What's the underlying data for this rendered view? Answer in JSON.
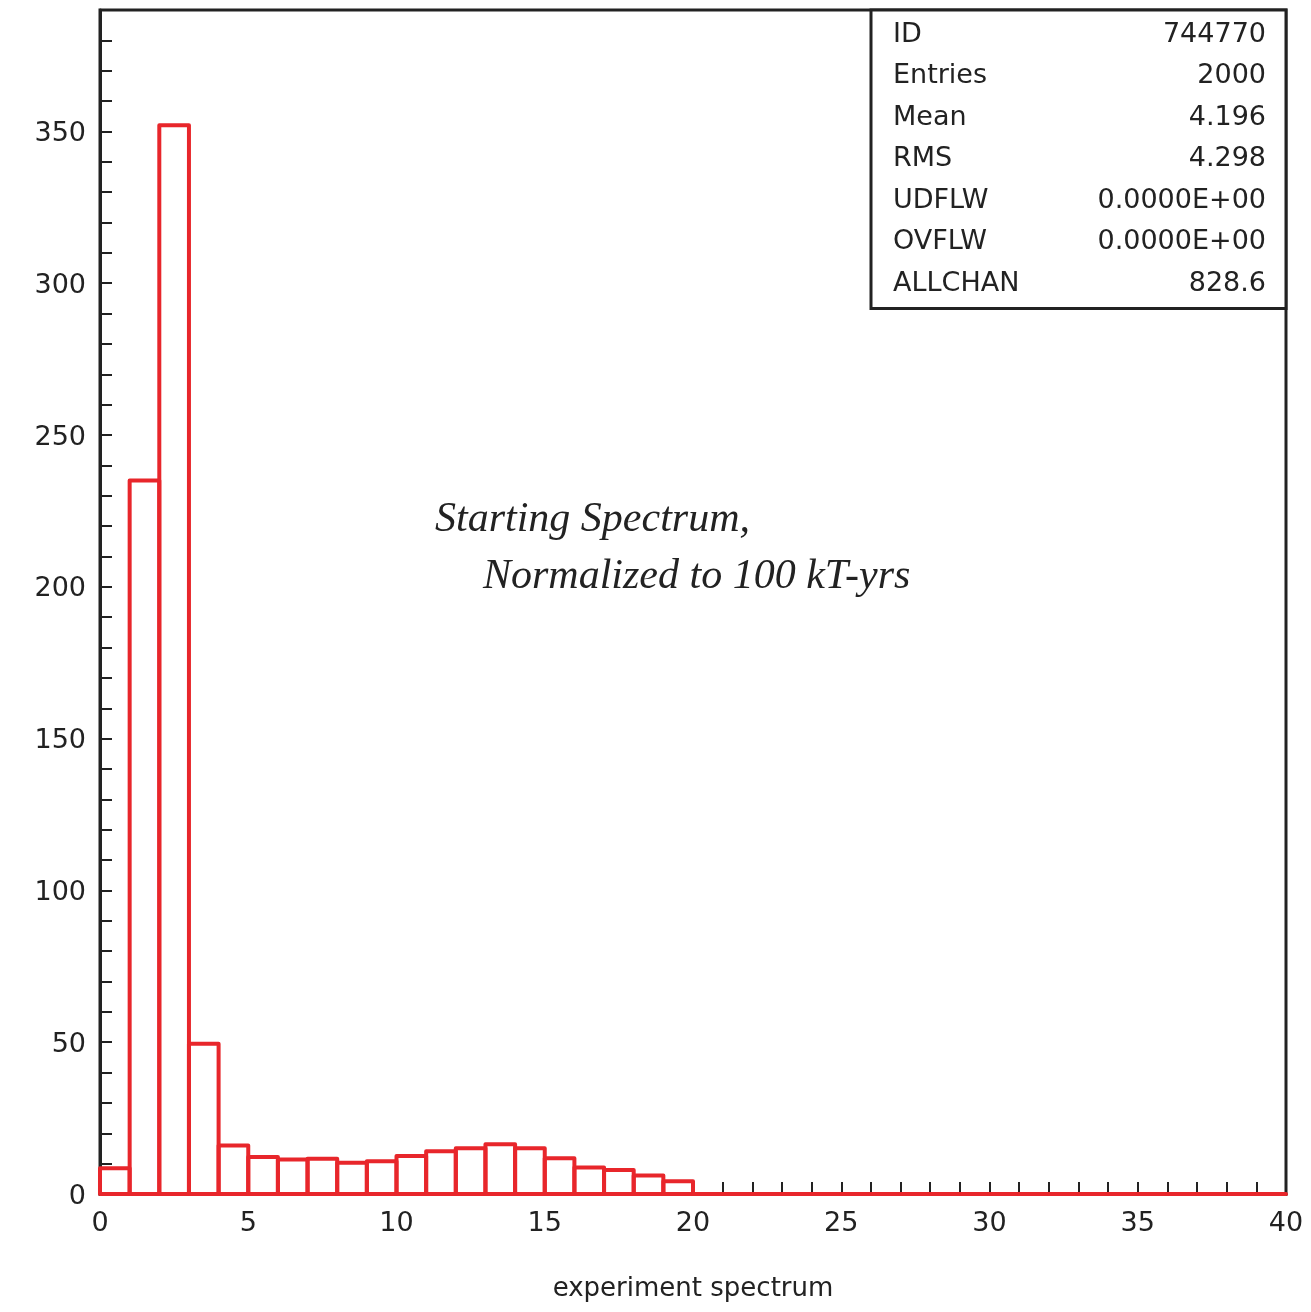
{
  "chart_data": {
    "type": "histogram",
    "xlabel": "experiment spectrum",
    "annotations": [
      "Starting Spectrum,",
      "Normalized to 100 kT-yrs",
      "ID 744770",
      "Entries 2000",
      "Mean 4.196",
      "RMS 4.298",
      "UDFLW 0.0000E+00",
      "OVFLW 0.0000E+00",
      "ALLCHAN 828.6"
    ],
    "bins": [
      0,
      1,
      2,
      3,
      4,
      5,
      6,
      7,
      8,
      9,
      10,
      11,
      12,
      13,
      14,
      15,
      16,
      17,
      18,
      19,
      20,
      21,
      22,
      23,
      24,
      25,
      26,
      27,
      28,
      29,
      30,
      31,
      32,
      33,
      34,
      35,
      36,
      37,
      38,
      39,
      40
    ],
    "values": [
      8.5,
      235,
      352,
      49.5,
      16,
      12.2,
      11.4,
      11.6,
      10.3,
      10.8,
      12.5,
      14.1,
      15.1,
      16.4,
      15.1,
      11.8,
      8.7,
      7.9,
      6.1,
      4.2,
      0,
      0,
      0,
      0,
      0,
      0,
      0,
      0,
      0,
      0,
      0,
      0,
      0,
      0,
      0,
      0,
      0,
      0,
      0,
      0
    ],
    "color": "#e8262b",
    "xlim": [
      0,
      40
    ],
    "xticks": [
      0,
      {
        "value": 1,
        "label": null
      },
      {
        "value": 2,
        "label": null
      },
      {
        "value": 3,
        "label": null
      },
      {
        "value": 4,
        "label": null
      },
      5,
      {
        "value": 6,
        "label": null
      },
      {
        "value": 7,
        "label": null
      },
      {
        "value": 8,
        "label": null
      },
      {
        "value": 9,
        "label": null
      },
      10,
      {
        "value": 11,
        "label": null
      },
      {
        "value": 12,
        "label": null
      },
      {
        "value": 13,
        "label": null
      },
      {
        "value": 14,
        "label": null
      },
      15,
      {
        "value": 16,
        "label": null
      },
      {
        "value": 17,
        "label": null
      },
      {
        "value": 18,
        "label": null
      },
      {
        "value": 19,
        "label": null
      },
      20,
      {
        "value": 21,
        "label": null
      },
      {
        "value": 22,
        "label": null
      },
      {
        "value": 23,
        "label": null
      },
      {
        "value": 24,
        "label": null
      },
      25,
      {
        "value": 26,
        "label": null
      },
      {
        "value": 27,
        "label": null
      },
      {
        "value": 28,
        "label": null
      },
      {
        "value": 29,
        "label": null
      },
      30,
      {
        "value": 31,
        "label": null
      },
      {
        "value": 32,
        "label": null
      },
      {
        "value": 33,
        "label": null
      },
      {
        "value": 34,
        "label": null
      },
      35,
      {
        "value": 36,
        "label": null
      },
      {
        "value": 37,
        "label": null
      },
      {
        "value": 38,
        "label": null
      },
      {
        "value": 39,
        "label": null
      },
      40
    ],
    "ylim": [
      0,
      390
    ],
    "yticks": [
      0,
      {
        "value": 10,
        "label": null
      },
      {
        "value": 20,
        "label": null
      },
      {
        "value": 30,
        "label": null
      },
      {
        "value": 40,
        "label": null
      },
      50,
      {
        "value": 60,
        "label": null
      },
      {
        "value": 70,
        "label": null
      },
      {
        "value": 80,
        "label": null
      },
      {
        "value": 90,
        "label": null
      },
      100,
      {
        "value": 110,
        "label": null
      },
      {
        "value": 120,
        "label": null
      },
      {
        "value": 130,
        "label": null
      },
      {
        "value": 140,
        "label": null
      },
      150,
      {
        "value": 160,
        "label": null
      },
      {
        "value": 170,
        "label": null
      },
      {
        "value": 180,
        "label": null
      },
      {
        "value": 190,
        "label": null
      },
      200,
      {
        "value": 210,
        "label": null
      },
      {
        "value": 220,
        "label": null
      },
      {
        "value": 230,
        "label": null
      },
      {
        "value": 240,
        "label": null
      },
      250,
      {
        "value": 260,
        "label": null
      },
      {
        "value": 270,
        "label": null
      },
      {
        "value": 280,
        "label": null
      },
      {
        "value": 290,
        "label": null
      },
      300,
      {
        "value": 310,
        "label": null
      },
      {
        "value": 320,
        "label": null
      },
      {
        "value": 330,
        "label": null
      },
      {
        "value": 340,
        "label": null
      },
      350,
      {
        "value": 360,
        "label": null
      },
      {
        "value": 370,
        "label": null
      },
      {
        "value": 380,
        "label": null
      }
    ]
  }
}
